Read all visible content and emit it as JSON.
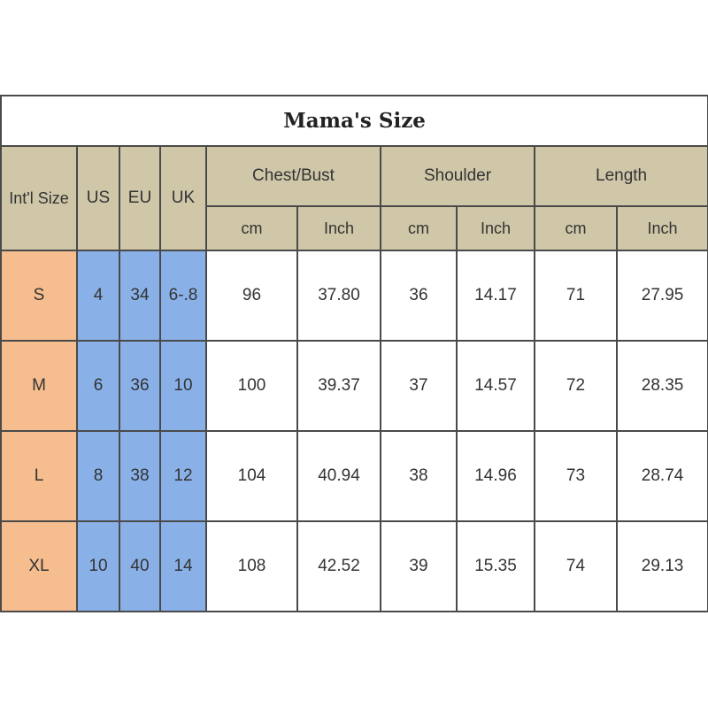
{
  "colors": {
    "header_bg": "#cfc7a8",
    "size_col_bg": "#f6bd8f",
    "conversion_col_bg": "#89b1e8",
    "border": "#4a4a4a"
  },
  "table": {
    "title": "Mama's Size",
    "headers": {
      "intl_size": "Int'l Size",
      "us": "US",
      "eu": "EU",
      "uk": "UK",
      "chest": "Chest/Bust",
      "shoulder": "Shoulder",
      "length": "Length"
    },
    "units": [
      "cm",
      "Inch",
      "cm",
      "Inch",
      "cm",
      "Inch"
    ],
    "rows": [
      {
        "size": "S",
        "us": "4",
        "eu": "34",
        "uk": "6-.8",
        "chest_cm": "96",
        "chest_in": "37.80",
        "shoulder_cm": "36",
        "shoulder_in": "14.17",
        "length_cm": "71",
        "length_in": "27.95"
      },
      {
        "size": "M",
        "us": "6",
        "eu": "36",
        "uk": "10",
        "chest_cm": "100",
        "chest_in": "39.37",
        "shoulder_cm": "37",
        "shoulder_in": "14.57",
        "length_cm": "72",
        "length_in": "28.35"
      },
      {
        "size": "L",
        "us": "8",
        "eu": "38",
        "uk": "12",
        "chest_cm": "104",
        "chest_in": "40.94",
        "shoulder_cm": "38",
        "shoulder_in": "14.96",
        "length_cm": "73",
        "length_in": "28.74"
      },
      {
        "size": "XL",
        "us": "10",
        "eu": "40",
        "uk": "14",
        "chest_cm": "108",
        "chest_in": "42.52",
        "shoulder_cm": "39",
        "shoulder_in": "15.35",
        "length_cm": "74",
        "length_in": "29.13"
      }
    ]
  }
}
